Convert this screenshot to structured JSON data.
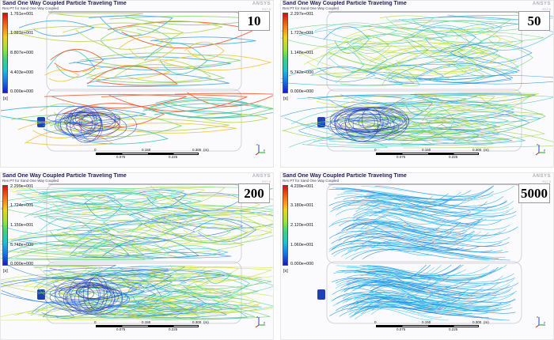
{
  "panels": [
    {
      "title": "Sand One Way Coupled Particle Traveling Time",
      "subtitle": "Res PT for Sand One Way Coupled",
      "badge": "10",
      "ansys_label": "ANSYS",
      "ansys_version": "R17.0",
      "legend": [
        "1.761e+001",
        "1.321e+001",
        "8.807e+000",
        "4.403e+000",
        "0.000e+000"
      ],
      "unit": "[s]",
      "scale": {
        "l0": "0",
        "l1": "0.150",
        "l2": "0.300",
        "unit": "(m)",
        "l3": "0.075",
        "l4": "0.225"
      },
      "palette": [
        "#f0c030",
        "#e85020",
        "#b0d040",
        "#40c0b0",
        "#30a0e0",
        "#80d060"
      ],
      "density": "sparse"
    },
    {
      "title": "Sand One Way Coupled Particle Traveling Time",
      "subtitle": "Res PT for Sand One Way Coupled",
      "badge": "50",
      "ansys_label": "ANSYS",
      "ansys_version": "R17.0",
      "legend": [
        "2.297e+001",
        "1.723e+001",
        "1.148e+001",
        "5.742e+000",
        "0.000e+000"
      ],
      "unit": "[s]",
      "scale": {
        "l0": "0",
        "l1": "0.150",
        "l2": "0.300",
        "unit": "(m)",
        "l3": "0.075",
        "l4": "0.225"
      },
      "palette": [
        "#90d040",
        "#c0e030",
        "#40c8b0",
        "#2090e0",
        "#60d070",
        "#30b0d0"
      ],
      "density": "medium"
    },
    {
      "title": "Sand One Way Coupled Particle Traveling Time",
      "subtitle": "Res PT for Sand One Way Coupled",
      "badge": "200",
      "ansys_label": "ANSYS",
      "ansys_version": "R17.0",
      "legend": [
        "2.299e+001",
        "1.724e+001",
        "1.150e+001",
        "5.748e+000",
        "0.000e+000"
      ],
      "unit": "[s]",
      "scale": {
        "l0": "0",
        "l1": "0.150",
        "l2": "0.300",
        "unit": "(m)",
        "l3": "0.075",
        "l4": "0.225"
      },
      "palette": [
        "#a0d840",
        "#60c870",
        "#30b0d0",
        "#2070e0",
        "#d0e030",
        "#40d0a0"
      ],
      "density": "dense"
    },
    {
      "title": "Sand One Way Coupled Particle Traveling Time",
      "subtitle": "Res PT for Sand One Way Coupled",
      "badge": "5000",
      "ansys_label": "ANSYS",
      "ansys_version": "R17.0",
      "legend": [
        "4.239e+001",
        "3.180e+001",
        "2.120e+001",
        "1.060e+001",
        "0.000e+000"
      ],
      "unit": "[s]",
      "scale": {
        "l0": "0",
        "l1": "0.150",
        "l2": "0.300",
        "unit": "(m)",
        "l3": "0.075",
        "l4": "0.225"
      },
      "palette": [
        "#30b8e8",
        "#20a0e0",
        "#50c8f0",
        "#1880d8",
        "#40c0e8",
        "#2890e0"
      ],
      "density": "uniform"
    }
  ]
}
